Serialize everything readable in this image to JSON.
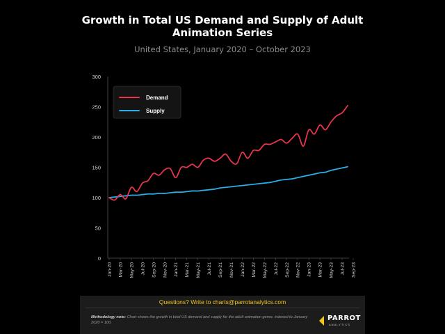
{
  "colors": {
    "demand": "#e8354d",
    "supply": "#29aee8",
    "accent": "#f5c518"
  },
  "chart_data": {
    "type": "line",
    "title": "Growth in Total US Demand and Supply of Adult Animation Series",
    "subtitle": "United States, January 2020 – October 2023",
    "ylim": [
      0,
      300
    ],
    "yticks": [
      "0",
      "50",
      "100",
      "150",
      "200",
      "250",
      "300"
    ],
    "x_tick_labels": [
      "Jan-20",
      "Mar-20",
      "May-20",
      "Jul-20",
      "Sep-20",
      "Nov-20",
      "Jan-21",
      "Mar-21",
      "May-21",
      "Jul-21",
      "Sep-21",
      "Nov-21",
      "Jan-22",
      "Mar-22",
      "May-22",
      "Jul-22",
      "Sep-22",
      "Nov-22",
      "Jan-23",
      "Mar-23",
      "May-23",
      "Jul-23",
      "Sep-23"
    ],
    "grid": false,
    "legend_position": "top-left",
    "series": [
      {
        "name": "Demand",
        "values": [
          100,
          96,
          105,
          98,
          117,
          110,
          124,
          128,
          140,
          137,
          146,
          148,
          133,
          150,
          150,
          155,
          150,
          162,
          165,
          160,
          165,
          172,
          160,
          156,
          175,
          165,
          178,
          178,
          188,
          188,
          192,
          196,
          190,
          198,
          205,
          185,
          212,
          205,
          220,
          212,
          225,
          235,
          240,
          252
        ]
      },
      {
        "name": "Supply",
        "values": [
          100,
          101,
          102,
          103,
          104,
          104,
          105,
          106,
          106,
          107,
          107,
          108,
          109,
          109,
          110,
          111,
          111,
          112,
          113,
          114,
          116,
          117,
          118,
          119,
          120,
          121,
          122,
          123,
          124,
          125,
          127,
          129,
          130,
          131,
          133,
          135,
          137,
          139,
          141,
          142,
          145,
          147,
          149,
          151
        ]
      }
    ]
  },
  "footer": {
    "questions": "Questions? Write to charts@parrotanalytics.com",
    "method_label": "Methodology note:",
    "method_text": " Chart shows the growth in total US demand and supply for the adult animation genre, indexed to January 2020 = 100.",
    "logo_name": "PARROT",
    "logo_sub": "ANALYTICS"
  }
}
